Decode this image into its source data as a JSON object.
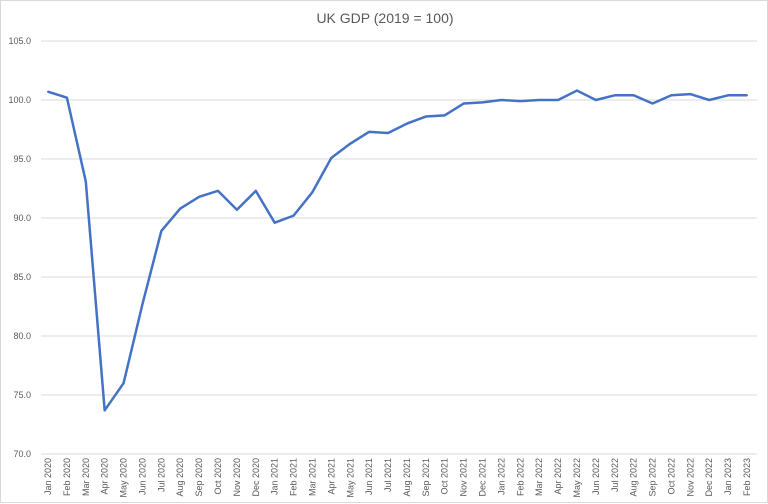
{
  "chart_data": {
    "type": "line",
    "title": "UK GDP (2019 = 100)",
    "xlabel": "",
    "ylabel": "",
    "ylim": [
      70,
      105
    ],
    "yticks": [
      "70.0",
      "75.0",
      "80.0",
      "85.0",
      "90.0",
      "95.0",
      "100.0",
      "105.0"
    ],
    "grid": true,
    "line_color": "#4472c4",
    "categories": [
      "Jan 2020",
      "Feb 2020",
      "Mar 2020",
      "Apr 2020",
      "May 2020",
      "Jun 2020",
      "Jul 2020",
      "Aug 2020",
      "Sep 2020",
      "Oct 2020",
      "Nov 2020",
      "Dec 2020",
      "Jan 2021",
      "Feb 2021",
      "Mar 2021",
      "Apr 2021",
      "May 2021",
      "Jun 2021",
      "Jul 2021",
      "Aug 2021",
      "Sep 2021",
      "Oct 2021",
      "Nov 2021",
      "Dec 2021",
      "Jan 2022",
      "Feb 2022",
      "Mar 2022",
      "Apr 2022",
      "May 2022",
      "Jun 2022",
      "Jul 2022",
      "Aug 2022",
      "Sep 2022",
      "Oct 2022",
      "Nov 2022",
      "Dec 2022",
      "Jan 2023",
      "Feb 2023"
    ],
    "series": [
      {
        "name": "UK GDP",
        "values": [
          100.7,
          100.2,
          93.1,
          73.7,
          76.0,
          82.7,
          88.9,
          90.8,
          91.8,
          92.3,
          90.7,
          92.3,
          89.6,
          90.2,
          92.2,
          95.1,
          96.3,
          97.3,
          97.2,
          98.0,
          98.6,
          98.7,
          99.7,
          99.8,
          100.0,
          99.9,
          100.0,
          100.0,
          100.8,
          100.0,
          100.4,
          100.4,
          99.7,
          100.4,
          100.5,
          100.0,
          100.4,
          100.4
        ]
      }
    ]
  }
}
